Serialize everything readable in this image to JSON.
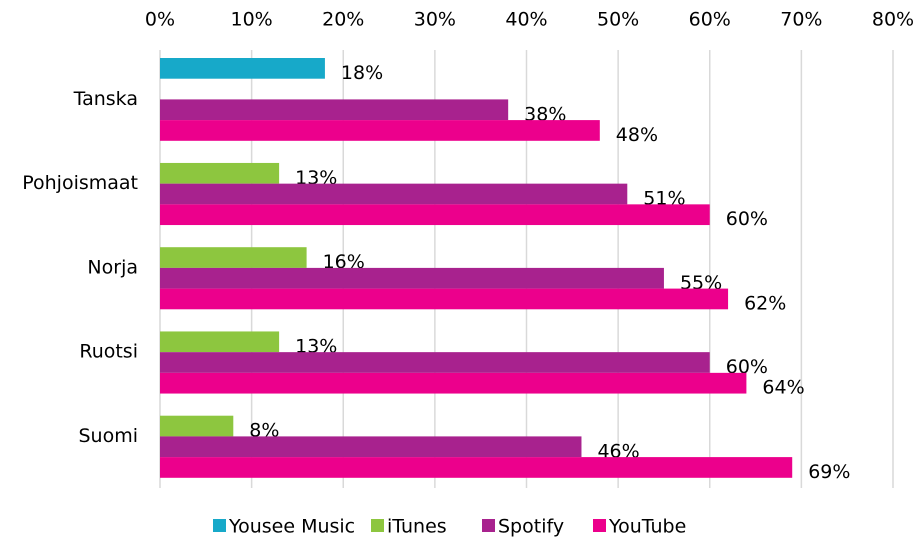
{
  "chart_data": {
    "type": "bar",
    "orientation": "horizontal",
    "categories": [
      "Tanska",
      "Pohjoismaat",
      "Norja",
      "Ruotsi",
      "Suomi"
    ],
    "series": [
      {
        "name": "Yousee Music",
        "color": "#17a9c9",
        "values": [
          18,
          null,
          null,
          null,
          null
        ],
        "value_labels": [
          "18%",
          null,
          null,
          null,
          null
        ]
      },
      {
        "name": "iTunes",
        "color": "#8dc63f",
        "values": [
          null,
          13,
          16,
          13,
          8
        ],
        "value_labels": [
          null,
          "13%",
          "16%",
          "13%",
          "8%"
        ]
      },
      {
        "name": "Spotify",
        "color": "#a8228e",
        "values": [
          38,
          51,
          55,
          60,
          46
        ],
        "value_labels": [
          "38%",
          "51%",
          "55%",
          "60%",
          "46%"
        ]
      },
      {
        "name": "YouTube",
        "color": "#ec008c",
        "values": [
          48,
          60,
          62,
          64,
          69
        ],
        "value_labels": [
          "48%",
          "60%",
          "62%",
          "64%",
          "69%"
        ]
      }
    ],
    "xlim": [
      0,
      80
    ],
    "xticks": [
      {
        "value": 0,
        "label": "0%"
      },
      {
        "value": 10,
        "label": "10%"
      },
      {
        "value": 20,
        "label": "20%"
      },
      {
        "value": 30,
        "label": "30%"
      },
      {
        "value": 40,
        "label": "40%"
      },
      {
        "value": 50,
        "label": "50%"
      },
      {
        "value": 60,
        "label": "60%"
      },
      {
        "value": 70,
        "label": "70%"
      },
      {
        "value": 80,
        "label": "80%"
      }
    ],
    "grid": true,
    "legend": "bottom"
  }
}
